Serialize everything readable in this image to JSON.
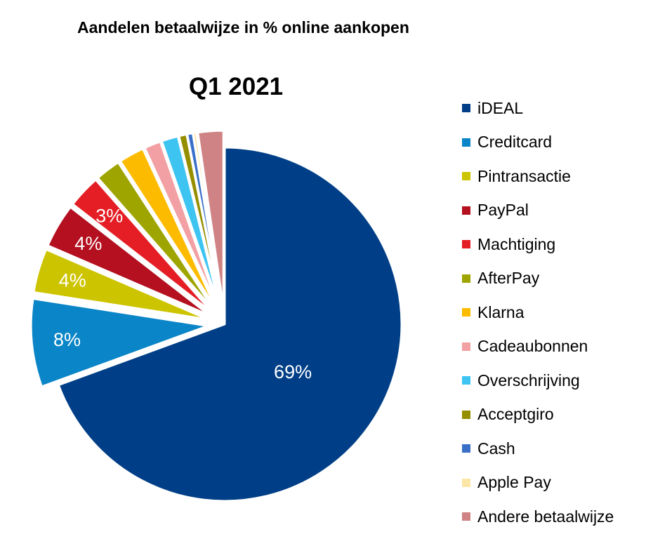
{
  "chart_data": {
    "type": "pie",
    "title": "Aandelen betaalwijze in % online aankopen",
    "subtitle": "Q1 2021",
    "legend_position": "right",
    "slices": [
      {
        "name": "iDEAL",
        "value": 69,
        "label": "69%",
        "color": "#003F87",
        "label_color": "#ffffff",
        "exploded": false
      },
      {
        "name": "Creditcard",
        "value": 8,
        "label": "8%",
        "color": "#0A85C7",
        "label_color": "#ffffff",
        "exploded": true
      },
      {
        "name": "Pintransactie",
        "value": 4,
        "label": "4%",
        "color": "#CDC400",
        "label_color": "#ffffff",
        "exploded": true
      },
      {
        "name": "PayPal",
        "value": 4,
        "label": "4%",
        "color": "#B4101F",
        "label_color": "#ffffff",
        "exploded": true
      },
      {
        "name": "Machtiging",
        "value": 3,
        "label": "3%",
        "color": "#E41E24",
        "label_color": "#ffffff",
        "exploded": true
      },
      {
        "name": "AfterPay",
        "value": 2.3,
        "label": "",
        "color": "#9EA500",
        "label_color": "#ffffff",
        "exploded": true
      },
      {
        "name": "Klarna",
        "value": 2.3,
        "label": "",
        "color": "#FDBB00",
        "label_color": "#ffffff",
        "exploded": true
      },
      {
        "name": "Cadeaubonnen",
        "value": 1.5,
        "label": "",
        "color": "#F2A0A3",
        "label_color": "#ffffff",
        "exploded": true
      },
      {
        "name": "Overschrijving",
        "value": 1.5,
        "label": "",
        "color": "#3EC4F1",
        "label_color": "#ffffff",
        "exploded": true
      },
      {
        "name": "Acceptgiro",
        "value": 0.7,
        "label": "",
        "color": "#958F00",
        "label_color": "#ffffff",
        "exploded": true
      },
      {
        "name": "Cash",
        "value": 0.5,
        "label": "",
        "color": "#3A6FC8",
        "label_color": "#ffffff",
        "exploded": true
      },
      {
        "name": "Apple Pay",
        "value": 0.3,
        "label": "",
        "color": "#FCE6A6",
        "label_color": "#ffffff",
        "exploded": true
      },
      {
        "name": "Andere betaalwijze",
        "value": 2.3,
        "label": "",
        "color": "#D08384",
        "label_color": "#ffffff",
        "exploded": true
      }
    ]
  }
}
